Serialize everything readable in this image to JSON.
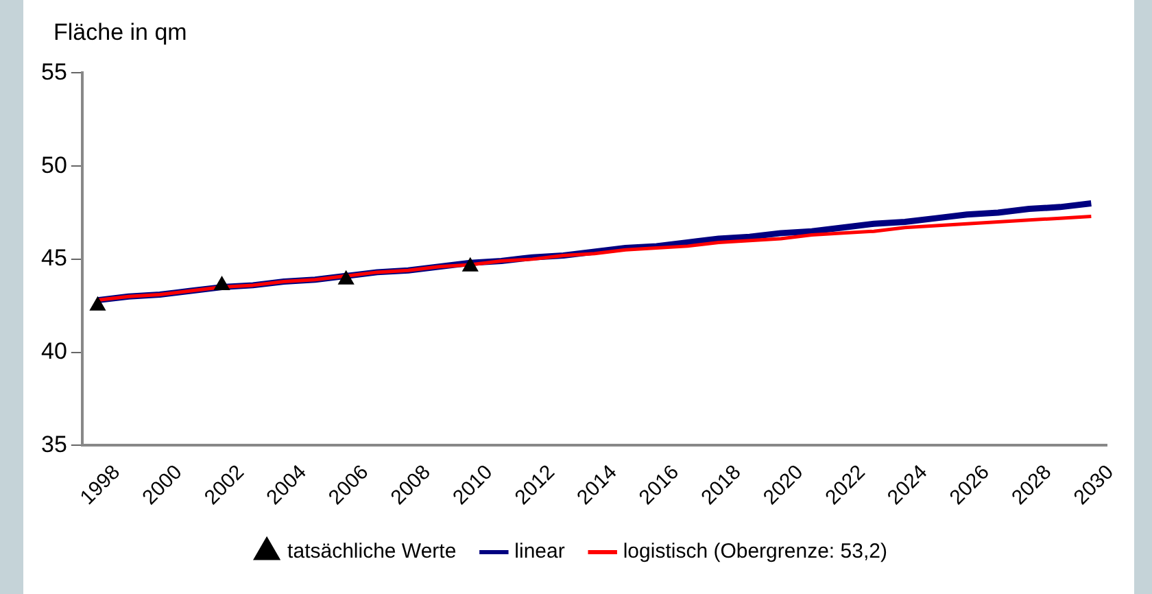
{
  "chart_data": {
    "type": "line",
    "ylabel": "Fläche in qm",
    "categories": [
      "1998",
      null,
      "2000",
      null,
      "2002",
      null,
      "2004",
      null,
      "2006",
      null,
      "2008",
      null,
      "2010",
      null,
      "2012",
      null,
      "2014",
      null,
      "2016",
      null,
      "2018",
      null,
      "2020",
      null,
      "2022",
      null,
      "2024",
      null,
      "2026",
      null,
      "2028",
      null,
      "2030"
    ],
    "series": [
      {
        "name": "tatsächliche Werte",
        "type": "scatter",
        "marker": "triangle",
        "color": "#000000",
        "values": [
          42.5,
          null,
          null,
          null,
          43.6,
          null,
          null,
          null,
          43.9,
          null,
          null,
          null,
          44.6,
          null,
          null,
          null,
          null,
          null,
          null,
          null,
          null,
          null,
          null,
          null,
          null,
          null,
          null,
          null,
          null,
          null,
          null,
          null,
          null
        ]
      },
      {
        "name": "linear",
        "type": "line",
        "marker": "none",
        "color": "#000080",
        "values": [
          42.8,
          43.0,
          43.1,
          43.3,
          43.5,
          43.6,
          43.8,
          43.9,
          44.1,
          44.3,
          44.4,
          44.6,
          44.8,
          44.9,
          45.1,
          45.2,
          45.4,
          45.6,
          45.7,
          45.9,
          46.1,
          46.2,
          46.4,
          46.5,
          46.7,
          46.9,
          47.0,
          47.2,
          47.4,
          47.5,
          47.7,
          47.8,
          48.0
        ]
      },
      {
        "name": "logistisch (Obergrenze: 53,2)",
        "type": "line",
        "marker": "none",
        "color": "#ff0000",
        "values": [
          42.8,
          43.0,
          43.1,
          43.3,
          43.5,
          43.6,
          43.8,
          43.9,
          44.1,
          44.3,
          44.4,
          44.6,
          44.7,
          44.9,
          45.0,
          45.2,
          45.3,
          45.5,
          45.6,
          45.7,
          45.9,
          46.0,
          46.1,
          46.3,
          46.4,
          46.5,
          46.7,
          46.8,
          46.9,
          47.0,
          47.1,
          47.2,
          47.3
        ]
      }
    ],
    "ylim": [
      35,
      55
    ],
    "yticks": [
      35,
      40,
      45,
      50,
      55
    ],
    "grid": false,
    "legend": "bottom"
  }
}
